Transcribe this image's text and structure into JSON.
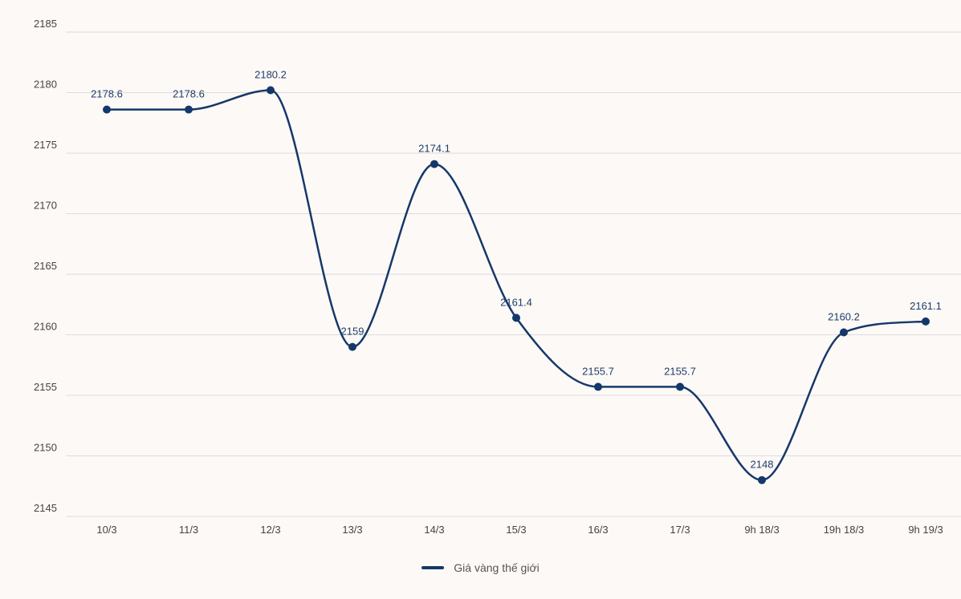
{
  "chart_data": {
    "type": "line",
    "categories": [
      "10/3",
      "11/3",
      "12/3",
      "13/3",
      "14/3",
      "15/3",
      "16/3",
      "17/3",
      "9h 18/3",
      "19h 18/3",
      "9h 19/3"
    ],
    "series": [
      {
        "name": "Giá vàng thế giới",
        "values": [
          2178.6,
          2178.6,
          2180.2,
          2159,
          2174.1,
          2161.4,
          2155.7,
          2155.7,
          2148,
          2160.2,
          2161.1
        ],
        "labels": [
          "2178.6",
          "2178.6",
          "2180.2",
          "2159",
          "2174.1",
          "2161.4",
          "2155.7",
          "2155.7",
          "2148",
          "2160.2",
          "2161.1"
        ]
      }
    ],
    "yticks": [
      "2145",
      "2150",
      "2155",
      "2160",
      "2165",
      "2170",
      "2175",
      "2180",
      "2185"
    ],
    "ylim": [
      2145,
      2185
    ],
    "grid": true,
    "legend_position": "bottom-center",
    "colors": {
      "line": "#15386a",
      "grid": "#dcdcdc",
      "background": "#fdf9f6",
      "label": "#1f3d6b"
    }
  }
}
